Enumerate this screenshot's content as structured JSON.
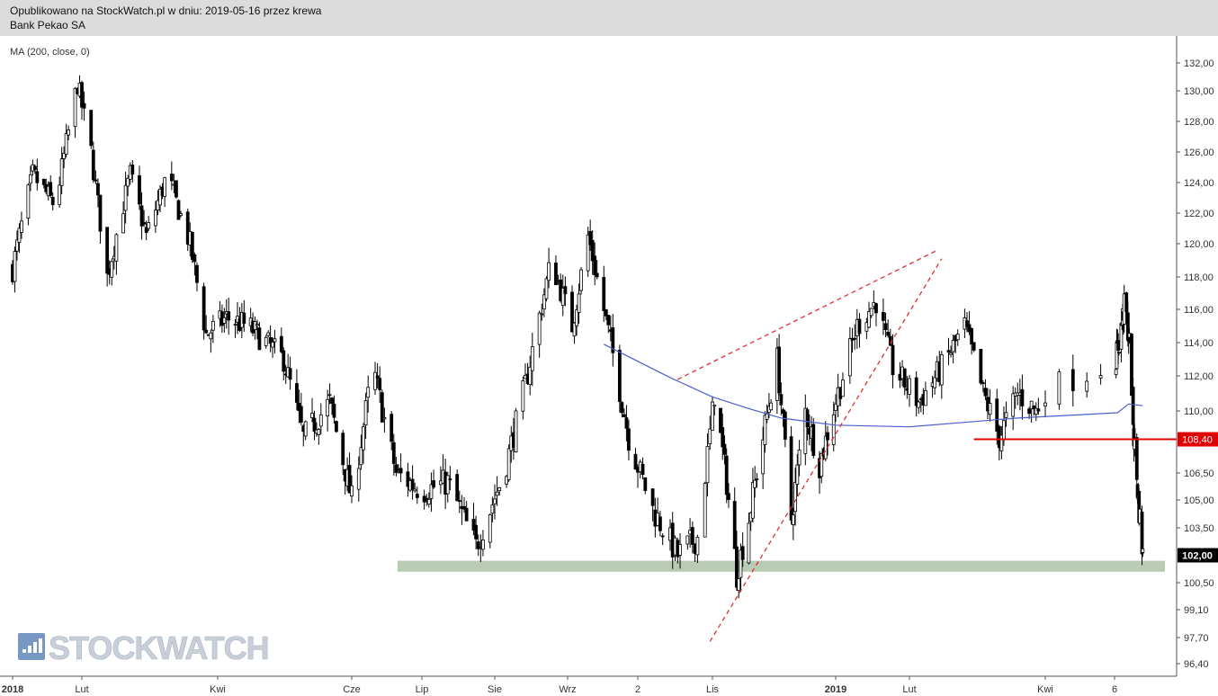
{
  "header": {
    "line1": "Opublikowano na StockWatch.pl w dniu: 2019-05-16 przez krewa",
    "line2": "Bank Pekao SA"
  },
  "indicator_label": "MA (200, close, 0)",
  "watermark": "STOCKWATCH",
  "colors": {
    "candle": "#000000",
    "ma_line": "#4a5fcf",
    "resistance": "#e00000",
    "support_band": "#b9cbb4",
    "trendlines": "#e03030",
    "header_bg": "#dcdcdc"
  },
  "chart_data": {
    "type": "candlestick",
    "title": "Bank Pekao SA",
    "yaxis": {
      "ticks": [
        "132,00",
        "130,00",
        "128,00",
        "126,00",
        "124,00",
        "122,00",
        "120,00",
        "118,00",
        "116,00",
        "114,00",
        "112,00",
        "110,00",
        "106,50",
        "105,00",
        "103,50",
        "100,50",
        "99,10",
        "97,70",
        "96,40"
      ],
      "position": "right"
    },
    "xaxis": {
      "ticks": [
        "2018",
        "Lut",
        "Kwi",
        "Cze",
        "Lip",
        "Sie",
        "Wrz",
        "2",
        "Lis",
        "2019",
        "Lut",
        "Kwi",
        "6"
      ]
    },
    "price_range": [
      96.0,
      132.5
    ],
    "series": [
      {
        "name": "MA (200, close, 0)",
        "kind": "line",
        "x": [
          "2018-09-17",
          "2018-10-15",
          "2018-11-01",
          "2018-11-20",
          "2018-12-05",
          "2019-01-01",
          "2019-02-01",
          "2019-03-01",
          "2019-03-20",
          "2019-04-10",
          "2019-04-25",
          "2019-05-14"
        ],
        "values": [
          113.9,
          111.9,
          110.8,
          110.1,
          109.6,
          109.2,
          109.1,
          109.4,
          109.6,
          109.9,
          110.4,
          110.3
        ]
      }
    ],
    "annotations": [
      {
        "type": "horizontal_level",
        "label": "108,40",
        "value": 108.4,
        "from": "2019-03-01",
        "to": "2019-05-16"
      },
      {
        "type": "support_band",
        "value_low": 101.1,
        "value_high": 101.7,
        "from": "2018-07-01",
        "to": "2019-05-16"
      },
      {
        "type": "trendline_dashed",
        "from": [
          "2018-10-18",
          111.8
        ],
        "to": [
          "2019-02-13",
          119.6
        ]
      },
      {
        "type": "trendline_dashed",
        "from": [
          "2018-10-31",
          97.5
        ],
        "to": [
          "2019-02-15",
          119.1
        ]
      }
    ],
    "last_price_label": "102,00",
    "last_price": 102.0,
    "grid": false
  }
}
